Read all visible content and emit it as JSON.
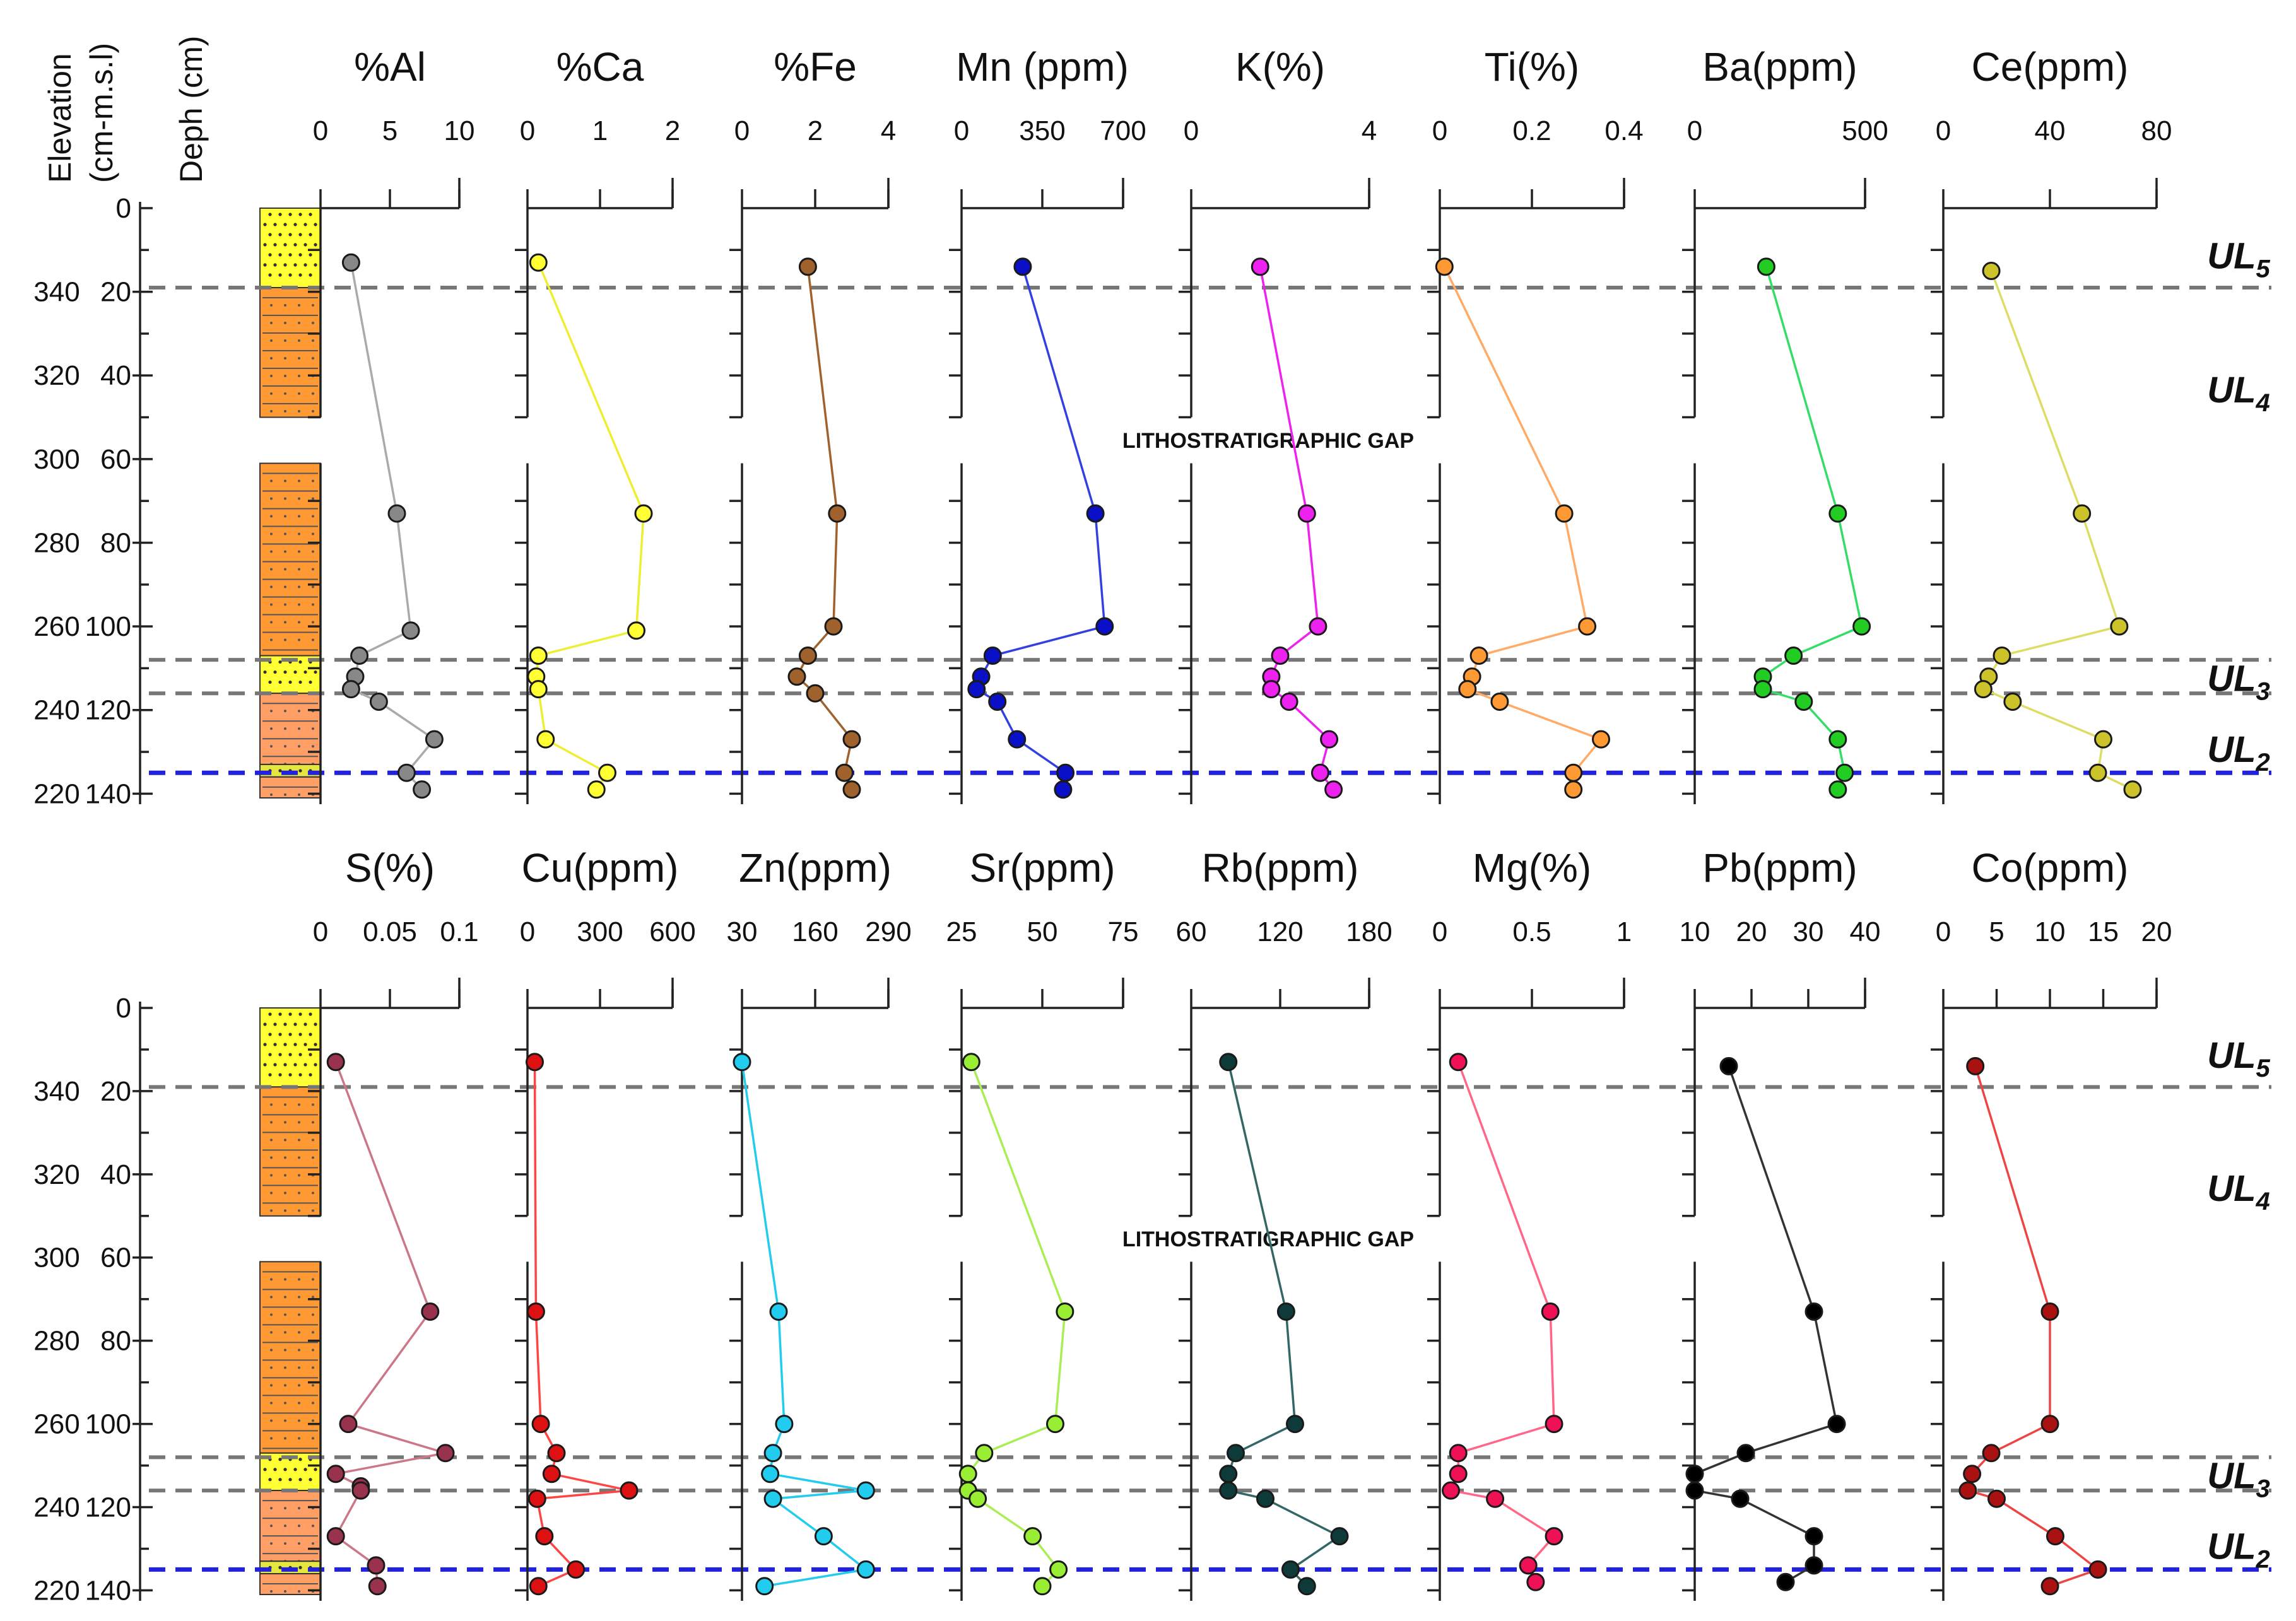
{
  "figure": {
    "left_axis": {
      "elevation_label_1": "Elevation",
      "elevation_label_2": "(cm-m.s.l)",
      "depth_label": "Deph (cm)",
      "depth_ticks": [
        "0",
        "20",
        "40",
        "60",
        "80",
        "100",
        "120",
        "140"
      ],
      "elevation_ticks": [
        "340",
        "320",
        "300",
        "280",
        "260",
        "240",
        "220"
      ]
    },
    "gap_label": "LITHOSTRATIGRAPHIC GAP",
    "unit_labels": [
      {
        "base": "UL",
        "sub": "5",
        "depth": 12
      },
      {
        "base": "UL",
        "sub": "4",
        "depth": 44
      },
      {
        "base": "UL",
        "sub": "3",
        "depth": 113
      },
      {
        "base": "UL",
        "sub": "2",
        "depth": 130
      }
    ],
    "boundaries": {
      "grey_dashed": [
        19,
        108,
        116
      ],
      "blue_dashed": [
        135
      ]
    },
    "lithology": [
      {
        "from": 0,
        "to": 19,
        "type": "sand",
        "color": "#ffff33"
      },
      {
        "from": 19,
        "to": 50,
        "type": "silty-clay",
        "color": "#ff9933"
      },
      {
        "from": 61,
        "to": 107,
        "type": "silty-clay",
        "color": "#ff9933"
      },
      {
        "from": 107,
        "to": 116,
        "type": "sand",
        "color": "#ffff33"
      },
      {
        "from": 116,
        "to": 133,
        "type": "silty-clay",
        "color": "#ff9f66"
      },
      {
        "from": 133,
        "to": 136,
        "type": "sand",
        "color": "#e6e640"
      },
      {
        "from": 136,
        "to": 141,
        "type": "silty-clay",
        "color": "#ff9f66"
      }
    ]
  },
  "chart_data": [
    {
      "type": "line",
      "title": "%Al",
      "ticks": [
        "0",
        "5",
        "10"
      ],
      "xlim": [
        0,
        10
      ],
      "color": "#888888",
      "line_color": "#aaaaaa",
      "depth": [
        13,
        73,
        101,
        107,
        112,
        115,
        118,
        127,
        135,
        139
      ],
      "values": [
        2.2,
        5.5,
        6.5,
        2.8,
        2.5,
        2.2,
        4.2,
        8.2,
        6.2,
        7.3
      ]
    },
    {
      "type": "line",
      "title": "%Ca",
      "ticks": [
        "0",
        "1",
        "2"
      ],
      "xlim": [
        0,
        2
      ],
      "color": "#ffff33",
      "line_color": "#eeee33",
      "depth": [
        13,
        73,
        101,
        107,
        112,
        115,
        127,
        135,
        139
      ],
      "values": [
        0.15,
        1.6,
        1.5,
        0.15,
        0.12,
        0.15,
        0.25,
        1.1,
        0.95
      ]
    },
    {
      "type": "line",
      "title": "%Fe",
      "ticks": [
        "0",
        "2",
        "4"
      ],
      "xlim": [
        0,
        4
      ],
      "color": "#a0622d",
      "line_color": "#a0622d",
      "depth": [
        14,
        73,
        100,
        107,
        112,
        116,
        127,
        135,
        139
      ],
      "values": [
        1.8,
        2.6,
        2.5,
        1.8,
        1.5,
        2.0,
        3.0,
        2.8,
        3.0
      ]
    },
    {
      "type": "line",
      "title": "Mn (ppm)",
      "ticks": [
        "0",
        "350",
        "700"
      ],
      "xlim": [
        0,
        700
      ],
      "color": "#0a10c8",
      "line_color": "#3340e0",
      "depth": [
        14,
        73,
        100,
        107,
        112,
        115,
        118,
        127,
        135,
        139
      ],
      "values": [
        265,
        580,
        620,
        135,
        85,
        65,
        155,
        240,
        450,
        440
      ]
    },
    {
      "type": "line",
      "title": "K(%)",
      "ticks": [
        "0",
        "4"
      ],
      "xlim": [
        0,
        4
      ],
      "color": "#ee22ee",
      "line_color": "#ee22ee",
      "depth": [
        14,
        73,
        100,
        107,
        112,
        115,
        118,
        127,
        135,
        139
      ],
      "values": [
        1.55,
        2.6,
        2.85,
        2.0,
        1.8,
        1.8,
        2.2,
        3.1,
        2.9,
        3.2
      ]
    },
    {
      "type": "line",
      "title": "Ti(%)",
      "ticks": [
        "0",
        "0.2",
        "0.4"
      ],
      "xlim": [
        0,
        0.4
      ],
      "color": "#ff9933",
      "line_color": "#ffaa66",
      "depth": [
        14,
        73,
        100,
        107,
        112,
        115,
        118,
        127,
        135,
        139
      ],
      "values": [
        0.01,
        0.27,
        0.32,
        0.085,
        0.07,
        0.06,
        0.13,
        0.35,
        0.29,
        0.29
      ]
    },
    {
      "type": "line",
      "title": "Ba(ppm)",
      "ticks": [
        "0",
        "500"
      ],
      "xlim": [
        0,
        500
      ],
      "color": "#22cc22",
      "line_color": "#33dd66",
      "depth": [
        14,
        73,
        100,
        107,
        112,
        115,
        118,
        127,
        135,
        139
      ],
      "values": [
        210,
        420,
        490,
        290,
        200,
        200,
        320,
        420,
        440,
        420
      ]
    },
    {
      "type": "line",
      "title": "Ce(ppm)",
      "ticks": [
        "0",
        "40",
        "80"
      ],
      "xlim": [
        0,
        80
      ],
      "color": "#ccc22a",
      "line_color": "#dddd66",
      "depth": [
        15,
        73,
        100,
        107,
        112,
        115,
        118,
        127,
        135,
        139
      ],
      "values": [
        18,
        52,
        66,
        22,
        17,
        15,
        26,
        60,
        58,
        71
      ]
    },
    {
      "type": "line",
      "title": "S(%)",
      "ticks": [
        "0",
        "0.05",
        "0.1"
      ],
      "xlim": [
        0,
        0.1
      ],
      "color": "#99334d",
      "line_color": "#cc7788",
      "depth": [
        13,
        73,
        100,
        107,
        112,
        115,
        116,
        127,
        134,
        139
      ],
      "values": [
        0.011,
        0.079,
        0.02,
        0.09,
        0.011,
        0.029,
        0.029,
        0.011,
        0.04,
        0.041
      ]
    },
    {
      "type": "line",
      "title": "Cu(ppm)",
      "ticks": [
        "0",
        "300",
        "600"
      ],
      "xlim": [
        0,
        600
      ],
      "color": "#dd1111",
      "line_color": "#ff4444",
      "depth": [
        13,
        73,
        100,
        107,
        112,
        116,
        118,
        127,
        135,
        139
      ],
      "values": [
        30,
        35,
        55,
        120,
        100,
        420,
        40,
        70,
        200,
        45
      ]
    },
    {
      "type": "line",
      "title": "Zn(ppm)",
      "ticks": [
        "30",
        "160",
        "290"
      ],
      "xlim": [
        30,
        290
      ],
      "color": "#22ccee",
      "line_color": "#22ccee",
      "depth": [
        13,
        73,
        100,
        107,
        112,
        116,
        118,
        127,
        135,
        139
      ],
      "values": [
        30,
        95,
        105,
        85,
        80,
        250,
        85,
        175,
        250,
        70
      ]
    },
    {
      "type": "line",
      "title": "Sr(ppm)",
      "ticks": [
        "25",
        "50",
        "75"
      ],
      "xlim": [
        25,
        75
      ],
      "color": "#99ee33",
      "line_color": "#aaee55",
      "depth": [
        13,
        73,
        100,
        107,
        112,
        116,
        118,
        127,
        135,
        139
      ],
      "values": [
        28,
        57,
        54,
        32,
        27,
        27,
        30,
        47,
        55,
        50
      ]
    },
    {
      "type": "line",
      "title": "Rb(ppm)",
      "ticks": [
        "60",
        "120",
        "180"
      ],
      "xlim": [
        60,
        180
      ],
      "color": "#0f3a3a",
      "line_color": "#336666",
      "depth": [
        13,
        73,
        100,
        107,
        112,
        116,
        118,
        127,
        135,
        139
      ],
      "values": [
        85,
        124,
        130,
        90,
        85,
        85,
        110,
        160,
        127,
        138
      ]
    },
    {
      "type": "line",
      "title": "Mg(%)",
      "ticks": [
        "0",
        "0.5",
        "1"
      ],
      "xlim": [
        0,
        1
      ],
      "color": "#ee1155",
      "line_color": "#ff6688",
      "depth": [
        13,
        73,
        100,
        107,
        112,
        116,
        118,
        127,
        134,
        138
      ],
      "values": [
        0.1,
        0.6,
        0.62,
        0.1,
        0.1,
        0.06,
        0.3,
        0.62,
        0.48,
        0.52
      ]
    },
    {
      "type": "line",
      "title": "Pb(ppm)",
      "ticks": [
        "10",
        "20",
        "30",
        "40"
      ],
      "xlim": [
        10,
        40
      ],
      "color": "#000000",
      "line_color": "#333333",
      "depth": [
        14,
        73,
        100,
        107,
        112,
        116,
        118,
        127,
        134,
        138
      ],
      "values": [
        16,
        31,
        35,
        19,
        10,
        10,
        18,
        31,
        31,
        26
      ]
    },
    {
      "type": "line",
      "title": "Co(ppm)",
      "ticks": [
        "0",
        "5",
        "10",
        "15",
        "20"
      ],
      "xlim": [
        0,
        20
      ],
      "color": "#aa1111",
      "line_color": "#ee4444",
      "depth": [
        14,
        73,
        100,
        107,
        112,
        116,
        118,
        127,
        135,
        139
      ],
      "values": [
        3,
        10,
        10,
        4.5,
        2.7,
        2.3,
        5,
        10.5,
        14.5,
        10
      ]
    }
  ]
}
